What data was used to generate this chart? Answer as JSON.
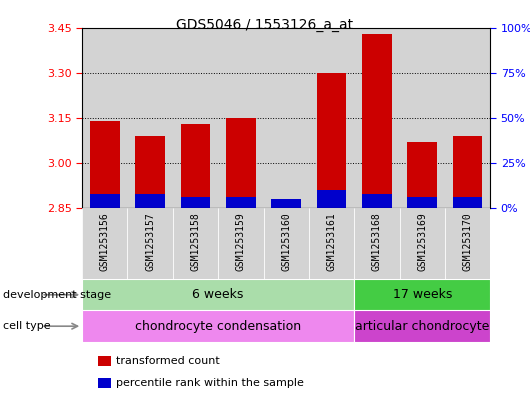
{
  "title": "GDS5046 / 1553126_a_at",
  "samples": [
    "GSM1253156",
    "GSM1253157",
    "GSM1253158",
    "GSM1253159",
    "GSM1253160",
    "GSM1253161",
    "GSM1253168",
    "GSM1253169",
    "GSM1253170"
  ],
  "transformed_count": [
    3.14,
    3.09,
    3.13,
    3.15,
    2.875,
    3.3,
    3.43,
    3.07,
    3.09
  ],
  "percentile_rank_pct": [
    8,
    8,
    6,
    6,
    5,
    10,
    8,
    6,
    6
  ],
  "baseline": 2.85,
  "ylim_left": [
    2.85,
    3.45
  ],
  "yticks_left": [
    2.85,
    3.0,
    3.15,
    3.3,
    3.45
  ],
  "yticks_right_pct": [
    0,
    25,
    50,
    75,
    100
  ],
  "bar_color": "#cc0000",
  "percentile_color": "#0000cc",
  "bg_color": "#ffffff",
  "col_bg_color": "#d3d3d3",
  "dev_stage_groups": [
    {
      "label": "6 weeks",
      "start": 0,
      "end": 5,
      "color": "#aaddaa"
    },
    {
      "label": "17 weeks",
      "start": 6,
      "end": 8,
      "color": "#44cc44"
    }
  ],
  "cell_type_groups": [
    {
      "label": "chondrocyte condensation",
      "start": 0,
      "end": 5,
      "color": "#ee88ee"
    },
    {
      "label": "articular chondrocyte",
      "start": 6,
      "end": 8,
      "color": "#cc44cc"
    }
  ],
  "dev_stage_label": "development stage",
  "cell_type_label": "cell type",
  "legend_items": [
    {
      "label": "transformed count",
      "color": "#cc0000"
    },
    {
      "label": "percentile rank within the sample",
      "color": "#0000cc"
    }
  ]
}
